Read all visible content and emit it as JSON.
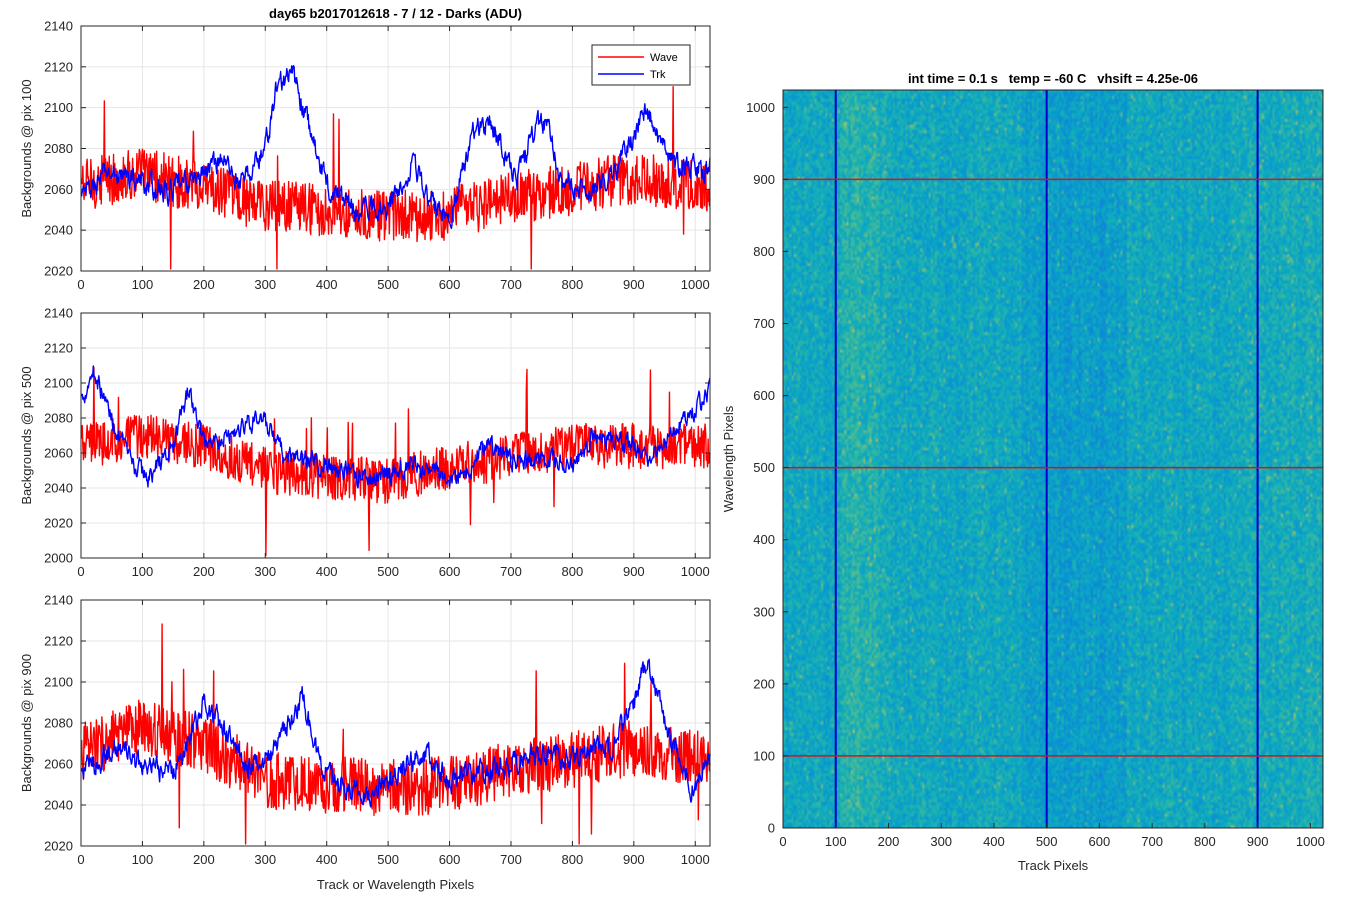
{
  "chart_data": [
    {
      "type": "line",
      "title": "day65 b2017012618 - 7 / 12 - Darks (ADU)",
      "xlabel": "",
      "ylabel": "Backgrounds @ pix 100",
      "xlim": [
        0,
        1024
      ],
      "ylim": [
        2020,
        2140
      ],
      "xticks": [
        0,
        100,
        200,
        300,
        400,
        500,
        600,
        700,
        800,
        900,
        1000
      ],
      "yticks": [
        2020,
        2040,
        2060,
        2080,
        2100,
        2120,
        2140
      ],
      "grid": true,
      "legend": "top-right",
      "series": [
        {
          "name": "Wave",
          "color": "#ff0000",
          "base": 2058,
          "noise": 26,
          "anchors": [
            [
              0,
              2062
            ],
            [
              100,
              2068
            ],
            [
              200,
              2060
            ],
            [
              300,
              2052
            ],
            [
              400,
              2050
            ],
            [
              500,
              2046
            ],
            [
              600,
              2048
            ],
            [
              700,
              2056
            ],
            [
              800,
              2060
            ],
            [
              900,
              2066
            ],
            [
              1024,
              2060
            ]
          ]
        },
        {
          "name": "Trk",
          "color": "#0000ff",
          "base": 2062,
          "noise": 10,
          "anchors": [
            [
              0,
              2055
            ],
            [
              40,
              2068
            ],
            [
              80,
              2066
            ],
            [
              140,
              2058
            ],
            [
              190,
              2066
            ],
            [
              230,
              2076
            ],
            [
              260,
              2062
            ],
            [
              300,
              2080
            ],
            [
              320,
              2112
            ],
            [
              345,
              2116
            ],
            [
              370,
              2092
            ],
            [
              400,
              2062
            ],
            [
              450,
              2050
            ],
            [
              500,
              2052
            ],
            [
              530,
              2066
            ],
            [
              540,
              2078
            ],
            [
              560,
              2056
            ],
            [
              600,
              2046
            ],
            [
              640,
              2088
            ],
            [
              665,
              2094
            ],
            [
              690,
              2078
            ],
            [
              710,
              2066
            ],
            [
              740,
              2090
            ],
            [
              760,
              2094
            ],
            [
              780,
              2068
            ],
            [
              800,
              2058
            ],
            [
              860,
              2064
            ],
            [
              890,
              2080
            ],
            [
              920,
              2100
            ],
            [
              960,
              2072
            ],
            [
              1024,
              2070
            ]
          ]
        }
      ]
    },
    {
      "type": "line",
      "title": "",
      "xlabel": "",
      "ylabel": "Backgrounds @ pix 500",
      "xlim": [
        0,
        1024
      ],
      "ylim": [
        2000,
        2140
      ],
      "xticks": [
        0,
        100,
        200,
        300,
        400,
        500,
        600,
        700,
        800,
        900,
        1000
      ],
      "yticks": [
        2000,
        2020,
        2040,
        2060,
        2080,
        2100,
        2120,
        2140
      ],
      "grid": true,
      "series": [
        {
          "name": "Wave",
          "color": "#ff0000",
          "base": 2060,
          "noise": 26,
          "anchors": [
            [
              0,
              2064
            ],
            [
              100,
              2070
            ],
            [
              200,
              2064
            ],
            [
              300,
              2050
            ],
            [
              400,
              2046
            ],
            [
              500,
              2044
            ],
            [
              600,
              2052
            ],
            [
              700,
              2058
            ],
            [
              800,
              2064
            ],
            [
              900,
              2064
            ],
            [
              1024,
              2064
            ]
          ]
        },
        {
          "name": "Trk",
          "color": "#0000ff",
          "base": 2060,
          "noise": 10,
          "anchors": [
            [
              0,
              2090
            ],
            [
              20,
              2108
            ],
            [
              50,
              2080
            ],
            [
              80,
              2054
            ],
            [
              110,
              2046
            ],
            [
              150,
              2064
            ],
            [
              175,
              2096
            ],
            [
              200,
              2066
            ],
            [
              250,
              2072
            ],
            [
              290,
              2082
            ],
            [
              330,
              2058
            ],
            [
              380,
              2056
            ],
            [
              430,
              2048
            ],
            [
              480,
              2046
            ],
            [
              520,
              2052
            ],
            [
              560,
              2050
            ],
            [
              610,
              2046
            ],
            [
              640,
              2054
            ],
            [
              660,
              2066
            ],
            [
              700,
              2056
            ],
            [
              760,
              2056
            ],
            [
              800,
              2052
            ],
            [
              840,
              2072
            ],
            [
              880,
              2066
            ],
            [
              930,
              2058
            ],
            [
              980,
              2080
            ],
            [
              1024,
              2094
            ]
          ]
        }
      ]
    },
    {
      "type": "line",
      "title": "",
      "xlabel": "Track or Wavelength Pixels",
      "ylabel": "Backgrounds @ pix 900",
      "xlim": [
        0,
        1024
      ],
      "ylim": [
        2020,
        2140
      ],
      "xticks": [
        0,
        100,
        200,
        300,
        400,
        500,
        600,
        700,
        800,
        900,
        1000
      ],
      "yticks": [
        2020,
        2040,
        2060,
        2080,
        2100,
        2120,
        2140
      ],
      "grid": true,
      "series": [
        {
          "name": "Wave",
          "color": "#ff0000",
          "base": 2064,
          "noise": 28,
          "anchors": [
            [
              0,
              2066
            ],
            [
              100,
              2078
            ],
            [
              200,
              2070
            ],
            [
              300,
              2052
            ],
            [
              400,
              2050
            ],
            [
              500,
              2048
            ],
            [
              600,
              2050
            ],
            [
              700,
              2058
            ],
            [
              800,
              2062
            ],
            [
              900,
              2068
            ],
            [
              1024,
              2062
            ]
          ]
        },
        {
          "name": "Trk",
          "color": "#0000ff",
          "base": 2062,
          "noise": 10,
          "anchors": [
            [
              0,
              2056
            ],
            [
              60,
              2068
            ],
            [
              100,
              2058
            ],
            [
              150,
              2056
            ],
            [
              200,
              2090
            ],
            [
              230,
              2078
            ],
            [
              270,
              2060
            ],
            [
              310,
              2064
            ],
            [
              360,
              2092
            ],
            [
              390,
              2060
            ],
            [
              430,
              2048
            ],
            [
              470,
              2046
            ],
            [
              510,
              2056
            ],
            [
              560,
              2066
            ],
            [
              600,
              2052
            ],
            [
              640,
              2054
            ],
            [
              700,
              2060
            ],
            [
              760,
              2066
            ],
            [
              800,
              2062
            ],
            [
              860,
              2068
            ],
            [
              900,
              2088
            ],
            [
              920,
              2110
            ],
            [
              960,
              2072
            ],
            [
              1000,
              2046
            ],
            [
              1024,
              2062
            ]
          ]
        }
      ]
    },
    {
      "type": "heatmap",
      "title": "int time = 0.1 s   temp = -60 C   vhsift = 4.25e-06",
      "xlabel": "Track Pixels",
      "ylabel": "Wavelength Pixels",
      "xlim": [
        0,
        1024
      ],
      "ylim": [
        0,
        1024
      ],
      "xticks": [
        0,
        100,
        200,
        300,
        400,
        500,
        600,
        700,
        800,
        900,
        1000
      ],
      "yticks": [
        0,
        100,
        200,
        300,
        400,
        500,
        600,
        700,
        800,
        900,
        1000
      ],
      "colormap": "parula",
      "marker_lines_vertical": [
        100,
        500,
        900
      ],
      "marker_lines_horizontal": [
        100,
        500,
        900
      ],
      "vertical_line_color": "#0000cc",
      "horizontal_line_color": "#e01010"
    }
  ],
  "colors": {
    "wave": "#ff0000",
    "trk": "#0000ff",
    "grid": "#e6e6e6",
    "axes": "#262626"
  }
}
